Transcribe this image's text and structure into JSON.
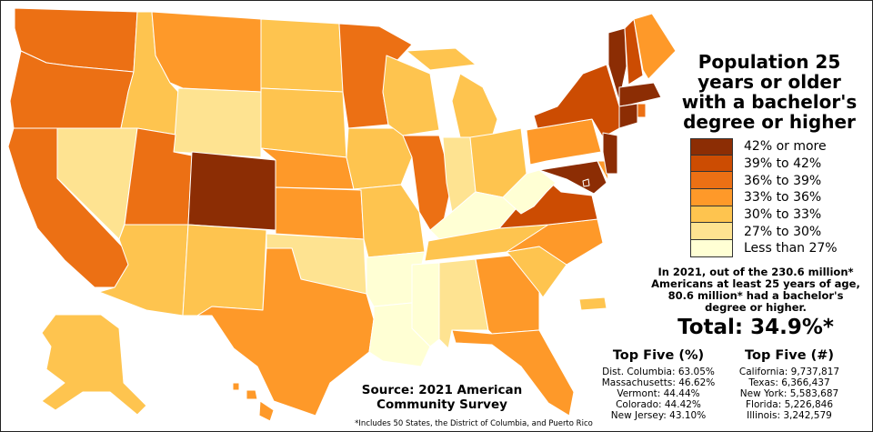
{
  "title": [
    "Population 25",
    "years or older",
    "with a bachelor's",
    "degree or higher"
  ],
  "legend": [
    {
      "label": "42% or more",
      "color": "#8c2d04"
    },
    {
      "label": "39% to 42%",
      "color": "#cc4c02"
    },
    {
      "label": "36% to 39%",
      "color": "#ec7014"
    },
    {
      "label": "33% to 36%",
      "color": "#fe9929"
    },
    {
      "label": "30% to 33%",
      "color": "#fec44f"
    },
    {
      "label": "27% to 30%",
      "color": "#fee391"
    },
    {
      "label": "Less than 27%",
      "color": "#ffffd4"
    }
  ],
  "summary": [
    "In 2021, out of the 230.6 million*",
    "Americans at least 25 years of age,",
    "80.6 million* had a bachelor's",
    "degree or higher."
  ],
  "total": "Total: 34.9%*",
  "top_pct": {
    "heading": "Top Five (%)",
    "items": [
      "Dist. Columbia: 63.05%",
      "Massachusetts: 46.62%",
      "Vermont: 44.44%",
      "Colorado: 44.42%",
      "New Jersey: 43.10%"
    ]
  },
  "top_num": {
    "heading": "Top Five (#)",
    "items": [
      "California: 9,737,817",
      "Texas: 6,366,437",
      "New York: 5,583,687",
      "Florida: 5,226,846",
      "Illinois: 3,242,579"
    ]
  },
  "source": [
    "Source: 2021 American",
    "Community Survey"
  ],
  "footnote": "*Includes 50 States, the District of Columbia, and Puerto Rico",
  "state_bins": {
    "WA": 2,
    "OR": 2,
    "CA": 2,
    "NV": 5,
    "ID": 4,
    "MT": 3,
    "WY": 5,
    "UT": 2,
    "CO": 0,
    "AZ": 4,
    "NM": 4,
    "ND": 4,
    "SD": 4,
    "NE": 3,
    "KS": 3,
    "OK": 5,
    "TX": 3,
    "MN": 2,
    "IA": 4,
    "MO": 4,
    "AR": 6,
    "LA": 6,
    "WI": 4,
    "IL": 2,
    "MI": 4,
    "IN": 5,
    "OH": 4,
    "KY": 6,
    "TN": 4,
    "MS": 6,
    "AL": 5,
    "GA": 3,
    "FL": 3,
    "SC": 4,
    "NC": 3,
    "VA": 1,
    "WV": 6,
    "MD": 0,
    "DE": 3,
    "PA": 3,
    "NJ": 0,
    "NY": 1,
    "CT": 0,
    "RI": 2,
    "MA": 0,
    "VT": 0,
    "NH": 1,
    "ME": 3,
    "AK": 4,
    "HI": 3,
    "PR": 4,
    "DC": 0
  }
}
